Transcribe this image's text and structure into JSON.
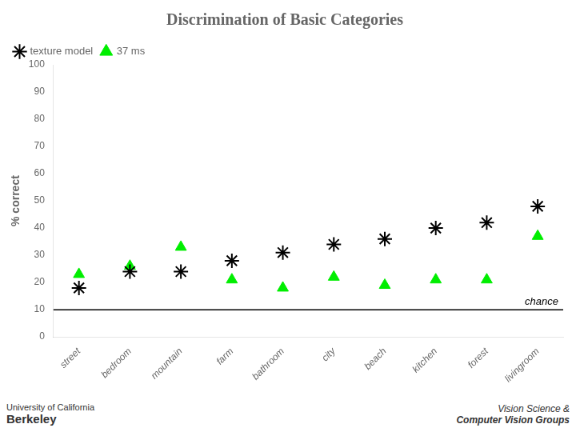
{
  "chart_data": {
    "type": "line",
    "title": "Discrimination of Basic Categories",
    "categories": [
      "street",
      "bedroom",
      "mountain",
      "farm",
      "bathroom",
      "city",
      "beach",
      "kitchen",
      "forest",
      "livingroom"
    ],
    "series": [
      {
        "name": "texture model",
        "color": "#000000",
        "marker": "star",
        "line_style": "none",
        "values": [
          18,
          24,
          24,
          28,
          31,
          34,
          36,
          40,
          42,
          48
        ]
      },
      {
        "name": "37 ms",
        "color": "#00ee00",
        "marker": "triangle",
        "line_style": "none",
        "values": [
          23,
          26,
          33,
          21,
          18,
          22,
          19,
          21,
          21,
          37
        ]
      }
    ],
    "ylabel": "% correct",
    "ylim": [
      0,
      100
    ],
    "yticks": [
      0,
      10,
      20,
      30,
      40,
      50,
      60,
      70,
      80,
      90,
      100
    ],
    "grid": false,
    "legend": "upper left",
    "annotations": [
      {
        "type": "hline",
        "y": 10,
        "text": "chance",
        "color": "#000000"
      }
    ],
    "footer_left": [
      "University of California",
      "Berkeley"
    ],
    "footer_right": [
      "Vision Science &",
      "Computer Vision Groups"
    ]
  }
}
